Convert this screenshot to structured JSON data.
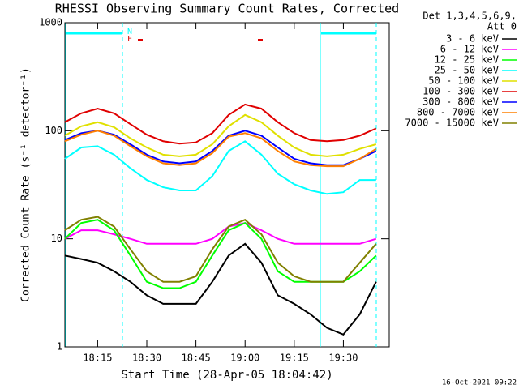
{
  "chart_data": {
    "type": "line",
    "title": "RHESSI Observing Summary Count Rates, Corrected",
    "legend_title": [
      "Det 1,3,4,5,6,9,",
      "Att 0"
    ],
    "x_label": "Start Time (28-Apr-05 18:04:42)",
    "y_label": "Corrected Count Rate (s⁻¹ detector⁻¹)",
    "timestamp": "16-Oct-2021 09:22",
    "flags": [
      "N",
      "F"
    ],
    "log_y": true,
    "xlim": [
      "18:05",
      "19:44"
    ],
    "xticks": [
      "18:15",
      "18:30",
      "18:45",
      "19:00",
      "19:15",
      "19:30"
    ],
    "ylim": [
      1,
      1000
    ],
    "yticks": [
      1,
      10,
      100,
      1000
    ],
    "x": [
      "18:05",
      "18:10",
      "18:15",
      "18:20",
      "18:25",
      "18:30",
      "18:35",
      "18:40",
      "18:45",
      "18:50",
      "18:55",
      "19:00",
      "19:05",
      "19:10",
      "19:15",
      "19:20",
      "19:25",
      "19:30",
      "19:35",
      "19:40"
    ],
    "series": [
      {
        "name": "3 - 6 keV",
        "color": "#000000",
        "values": [
          7,
          6.5,
          6,
          5,
          4,
          3,
          2.5,
          2.5,
          2.5,
          4,
          7,
          9,
          6,
          3,
          2.5,
          2,
          1.5,
          1.3,
          2,
          4
        ]
      },
      {
        "name": "6 - 12 keV",
        "color": "#ff00ff",
        "values": [
          10,
          12,
          12,
          11,
          10,
          9,
          9,
          9,
          9,
          10,
          13,
          14,
          12,
          10,
          9,
          9,
          9,
          9,
          9,
          10
        ]
      },
      {
        "name": "12 - 25 keV",
        "color": "#00ff00",
        "values": [
          10,
          14,
          15,
          12,
          7,
          4,
          3.5,
          3.5,
          4,
          7,
          12,
          14,
          10,
          5,
          4,
          4,
          4,
          4,
          5,
          7
        ]
      },
      {
        "name": "25 - 50 keV",
        "color": "#00ffff",
        "values": [
          55,
          70,
          72,
          60,
          45,
          35,
          30,
          28,
          28,
          38,
          65,
          80,
          60,
          40,
          32,
          28,
          26,
          27,
          35,
          35
        ]
      },
      {
        "name": "50 - 100 keV",
        "color": "#e0e000",
        "values": [
          90,
          110,
          120,
          108,
          85,
          70,
          60,
          58,
          60,
          75,
          110,
          140,
          120,
          90,
          70,
          60,
          58,
          60,
          68,
          75
        ]
      },
      {
        "name": "100 - 300 keV",
        "color": "#e00000",
        "values": [
          120,
          145,
          160,
          145,
          115,
          92,
          80,
          76,
          78,
          95,
          140,
          175,
          160,
          120,
          95,
          82,
          80,
          82,
          90,
          105
        ]
      },
      {
        "name": "300 - 800 keV",
        "color": "#0000ff",
        "values": [
          82,
          95,
          100,
          92,
          75,
          60,
          52,
          50,
          52,
          65,
          90,
          100,
          90,
          70,
          55,
          50,
          48,
          48,
          55,
          65
        ]
      },
      {
        "name": "800 - 7000 keV",
        "color": "#ff8000",
        "values": [
          80,
          92,
          100,
          90,
          72,
          58,
          50,
          48,
          50,
          62,
          88,
          95,
          85,
          65,
          52,
          48,
          47,
          47,
          55,
          68
        ]
      },
      {
        "name": "7000 - 15000 keV",
        "color": "#808000",
        "values": [
          12,
          15,
          16,
          13,
          8,
          5,
          4,
          4,
          4.5,
          8,
          13,
          15,
          11,
          6,
          4.5,
          4,
          4,
          4,
          6,
          9
        ]
      }
    ]
  }
}
